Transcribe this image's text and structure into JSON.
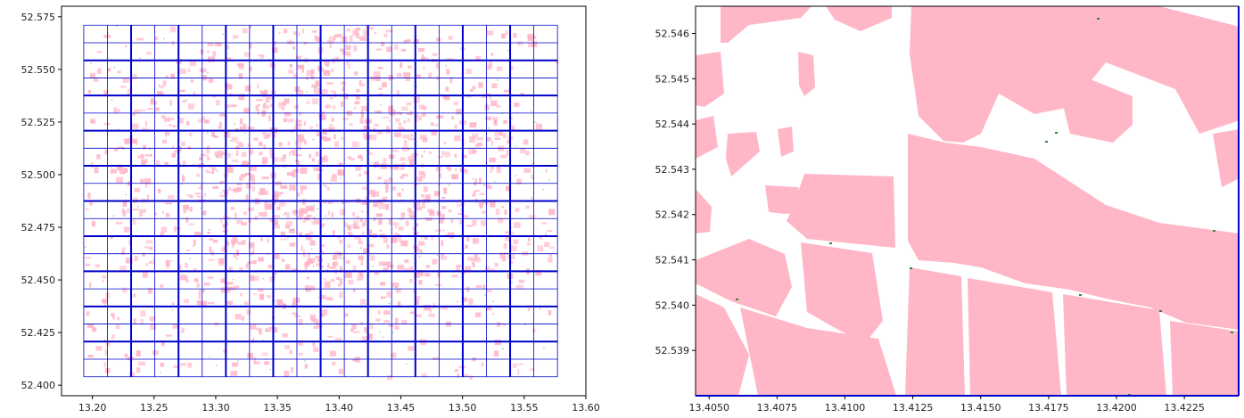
{
  "colors": {
    "buildings": "#ffb6c6",
    "grid": "#0000cc",
    "greenery": "#2e8b2e",
    "axes": "#000000",
    "background": "#ffffff"
  },
  "chart_data": [
    {
      "type": "map",
      "title": "",
      "xlabel": "",
      "ylabel": "",
      "xlim": [
        13.175,
        13.6
      ],
      "ylim": [
        52.395,
        52.58
      ],
      "x_ticks": [
        "13.20",
        "13.25",
        "13.30",
        "13.35",
        "13.40",
        "13.45",
        "13.50",
        "13.55",
        "13.60"
      ],
      "x_tick_values": [
        13.2,
        13.25,
        13.3,
        13.35,
        13.4,
        13.45,
        13.5,
        13.55,
        13.6
      ],
      "y_ticks": [
        "52.400",
        "52.425",
        "52.450",
        "52.475",
        "52.500",
        "52.525",
        "52.550",
        "52.575"
      ],
      "y_tick_values": [
        52.4,
        52.425,
        52.45,
        52.475,
        52.5,
        52.525,
        52.55,
        52.575
      ],
      "grid_extent": {
        "x": [
          13.193,
          13.577
        ],
        "y": [
          52.404,
          52.571
        ]
      },
      "grid_columns": 20,
      "grid_rows": 20,
      "grid_major_every": 2
    },
    {
      "type": "map",
      "title": "",
      "xlabel": "",
      "ylabel": "",
      "xlim": [
        13.4045,
        13.4245
      ],
      "ylim": [
        52.538,
        52.5466
      ],
      "x_ticks": [
        "13.4050",
        "13.4075",
        "13.4100",
        "13.4125",
        "13.4150",
        "13.4175",
        "13.4200",
        "13.4225"
      ],
      "x_tick_values": [
        13.405,
        13.4075,
        13.41,
        13.4125,
        13.415,
        13.4175,
        13.42,
        13.4225
      ],
      "y_ticks": [
        "52.539",
        "52.540",
        "52.541",
        "52.542",
        "52.543",
        "52.544",
        "52.545",
        "52.546"
      ],
      "y_tick_values": [
        52.539,
        52.54,
        52.541,
        52.542,
        52.543,
        52.544,
        52.545,
        52.546
      ]
    }
  ]
}
